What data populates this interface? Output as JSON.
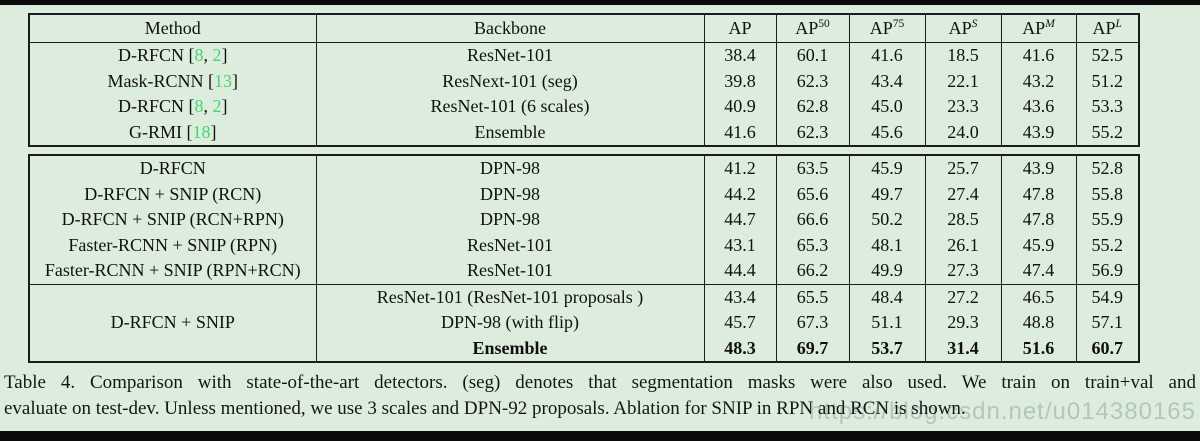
{
  "colors": {
    "background": "#dcedde",
    "citation_green": "#3fd96b",
    "border": "#1b1b1b",
    "watermark_gray": "#a7bdb2"
  },
  "table": {
    "header": [
      {
        "label": "Method"
      },
      {
        "label": "Backbone"
      },
      {
        "label": "AP"
      },
      {
        "label": "AP",
        "sup": "50"
      },
      {
        "label": "AP",
        "sup": "75"
      },
      {
        "label": "AP",
        "sup": "S",
        "italic": true
      },
      {
        "label": "AP",
        "sup": "M",
        "italic": true
      },
      {
        "label": "AP",
        "sup": "L",
        "italic": true
      }
    ],
    "groups": [
      {
        "rows": [
          {
            "method": [
              {
                "s": "D-RFCN ["
              },
              {
                "s": "8",
                "green": true
              },
              {
                "s": ", "
              },
              {
                "s": "2",
                "green": true
              },
              {
                "s": "]"
              }
            ],
            "backbone": "ResNet-101",
            "values": [
              "38.4",
              "60.1",
              "41.6",
              "18.5",
              "41.6",
              "52.5"
            ]
          },
          {
            "method": [
              {
                "s": "Mask-RCNN ["
              },
              {
                "s": "13",
                "green": true
              },
              {
                "s": "]"
              }
            ],
            "backbone": "ResNext-101 (seg)",
            "values": [
              "39.8",
              "62.3",
              "43.4",
              "22.1",
              "43.2",
              "51.2"
            ]
          },
          {
            "method": [
              {
                "s": "D-RFCN ["
              },
              {
                "s": "8",
                "green": true
              },
              {
                "s": ", "
              },
              {
                "s": "2",
                "green": true
              },
              {
                "s": "]"
              }
            ],
            "backbone": "ResNet-101 (6 scales)",
            "values": [
              "40.9",
              "62.8",
              "45.0",
              "23.3",
              "43.6",
              "53.3"
            ]
          },
          {
            "method": [
              {
                "s": "G-RMI ["
              },
              {
                "s": "18",
                "green": true
              },
              {
                "s": "]"
              }
            ],
            "backbone": "Ensemble",
            "values": [
              "41.6",
              "62.3",
              "45.6",
              "24.0",
              "43.9",
              "55.2"
            ]
          }
        ]
      },
      {
        "rows": [
          {
            "method": [
              {
                "s": "D-RFCN"
              }
            ],
            "backbone": "DPN-98",
            "values": [
              "41.2",
              "63.5",
              "45.9",
              "25.7",
              "43.9",
              "52.8"
            ]
          },
          {
            "method": [
              {
                "s": "D-RFCN + SNIP (RCN)"
              }
            ],
            "backbone": "DPN-98",
            "values": [
              "44.2",
              "65.6",
              "49.7",
              "27.4",
              "47.8",
              "55.8"
            ]
          },
          {
            "method": [
              {
                "s": "D-RFCN + SNIP (RCN+RPN)"
              }
            ],
            "backbone": "DPN-98",
            "values": [
              "44.7",
              "66.6",
              "50.2",
              "28.5",
              "47.8",
              "55.9"
            ]
          },
          {
            "method": [
              {
                "s": "Faster-RCNN + SNIP (RPN)"
              }
            ],
            "backbone": "ResNet-101",
            "values": [
              "43.1",
              "65.3",
              "48.1",
              "26.1",
              "45.9",
              "55.2"
            ]
          },
          {
            "method": [
              {
                "s": "Faster-RCNN + SNIP (RPN+RCN)"
              }
            ],
            "backbone": "ResNet-101",
            "values": [
              "44.4",
              "66.2",
              "49.9",
              "27.3",
              "47.4",
              "56.9"
            ]
          }
        ]
      },
      {
        "method": [
          {
            "s": "D-RFCN + SNIP"
          }
        ],
        "rows": [
          {
            "backbone": "ResNet-101 (ResNet-101 proposals )",
            "values": [
              "43.4",
              "65.5",
              "48.4",
              "27.2",
              "46.5",
              "54.9"
            ]
          },
          {
            "backbone": "DPN-98 (with flip)",
            "values": [
              "45.7",
              "67.3",
              "51.1",
              "29.3",
              "48.8",
              "57.1"
            ]
          },
          {
            "backbone": "Ensemble",
            "values": [
              "48.3",
              "69.7",
              "53.7",
              "31.4",
              "51.6",
              "60.7"
            ],
            "bold": true
          }
        ]
      }
    ]
  },
  "caption": {
    "line1": "Table 4. Comparison with state-of-the-art detectors. (seg) denotes that segmentation masks were also used. We train on train+val and",
    "line2": "evaluate on test-dev. Unless mentioned, we use 3 scales and DPN-92 proposals. Ablation for SNIP in RPN and RCN is shown."
  },
  "watermark": "https://blog.csdn.net/u014380165"
}
